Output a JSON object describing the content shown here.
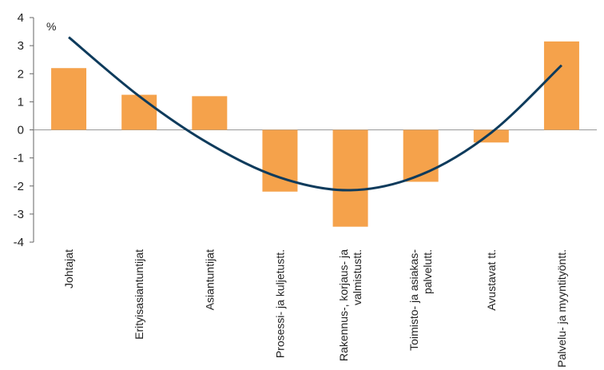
{
  "chart_data": {
    "type": "bar",
    "unit_label": "%",
    "categories": [
      [
        "Johtajat"
      ],
      [
        "Erityisasiantuntijat"
      ],
      [
        "Asiantuntijat"
      ],
      [
        "Prosessi- ja kuljetustt."
      ],
      [
        "Rakennus-, korjaus- ja",
        "valmistustt."
      ],
      [
        "Toimisto- ja asiakas-",
        "palvelutt."
      ],
      [
        "Avustavat tt."
      ],
      [
        "Palvelu- ja myyntityöntt."
      ]
    ],
    "values": [
      2.2,
      1.25,
      1.2,
      -2.2,
      -3.45,
      -1.85,
      -0.45,
      3.15
    ],
    "trend": [
      {
        "x": 0,
        "y": 3.3
      },
      {
        "x": 1.0,
        "y": 1.2
      },
      {
        "x": 2.0,
        "y": -0.5
      },
      {
        "x": 3.0,
        "y": -1.7
      },
      {
        "x": 4.0,
        "y": -2.15
      },
      {
        "x": 5.0,
        "y": -1.6
      },
      {
        "x": 6.0,
        "y": -0.1
      },
      {
        "x": 7.0,
        "y": 2.3
      }
    ],
    "ylim": [
      -4,
      4
    ],
    "yticks": [
      4,
      3,
      2,
      1,
      0,
      -1,
      -2,
      -3,
      -4
    ],
    "colors": {
      "bar": "#F5A24B",
      "trend": "#0E3B5C",
      "axis": "#666666"
    }
  }
}
